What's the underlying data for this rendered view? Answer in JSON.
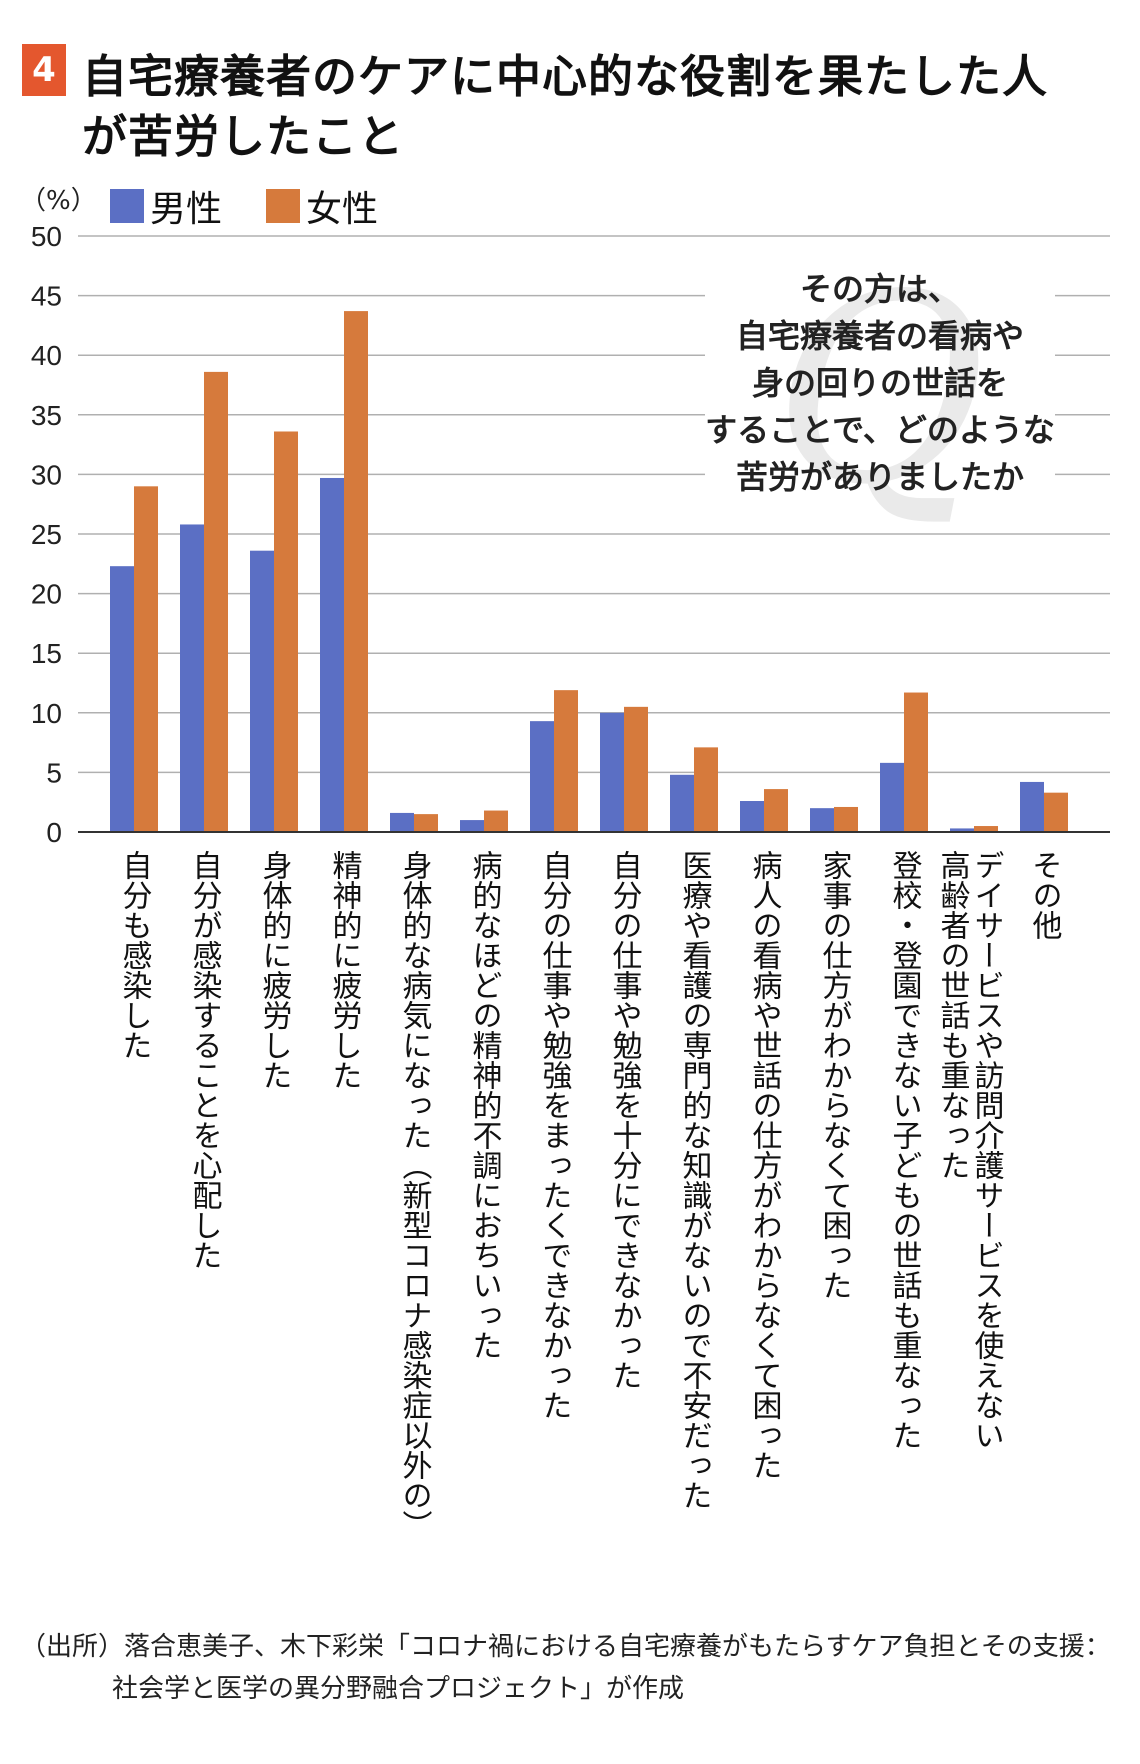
{
  "header": {
    "badge": "4",
    "title_line1": "自宅療養者のケアに中心的な役割を果たした人",
    "title_line2": "が苦労したこと"
  },
  "colors": {
    "male": "#5b6fc4",
    "female": "#d67a3c",
    "badge": "#e4572e",
    "grid": "#b0b0b0"
  },
  "chart_data": {
    "type": "bar",
    "unit_label": "（%）",
    "ylim": [
      0,
      50
    ],
    "yticks": [
      0,
      5,
      10,
      15,
      20,
      25,
      30,
      35,
      40,
      45,
      50
    ],
    "grid": true,
    "legend_position": "top-left",
    "categories": [
      "自分も感染した",
      "自分が感染することを心配した",
      "身体的に疲労した",
      "精神的に疲労した",
      "身体的な病気になった（新型コロナ感染症以外の）",
      "病的なほどの精神的不調におちいった",
      "自分の仕事や勉強をまったくできなかった",
      "自分の仕事や勉強を十分にできなかった",
      "医療や看護の専門的な知識がないので不安だった",
      "病人の看病や世話の仕方がわからなくて困った",
      "家事の仕方がわからなくて困った",
      "登校・登園できない子どもの世話も重なった",
      "デイサービスや訪問介護サービスを使えない|高齢者の世話も重なった",
      "その他"
    ],
    "series": [
      {
        "name": "男性",
        "values": [
          22.3,
          25.8,
          23.6,
          29.7,
          1.6,
          1.0,
          9.3,
          10.0,
          4.8,
          2.6,
          2.0,
          5.8,
          0.3,
          4.2
        ]
      },
      {
        "name": "女性",
        "values": [
          29.0,
          38.6,
          33.6,
          43.7,
          1.5,
          1.8,
          11.9,
          10.5,
          7.1,
          3.6,
          2.1,
          11.7,
          0.5,
          3.3
        ]
      }
    ]
  },
  "callout": {
    "letter": "Q",
    "lines": [
      "その方は、",
      "自宅療養者の看病や",
      "身の回りの世話を",
      "することで、どのような",
      "苦労がありましたか"
    ]
  },
  "source_note": {
    "line1": "（出所）落合恵美子、木下彩栄「コロナ禍における自宅療養がもたらすケア負担とその支援：",
    "line2": "社会学と医学の異分野融合プロジェクト」が作成"
  }
}
